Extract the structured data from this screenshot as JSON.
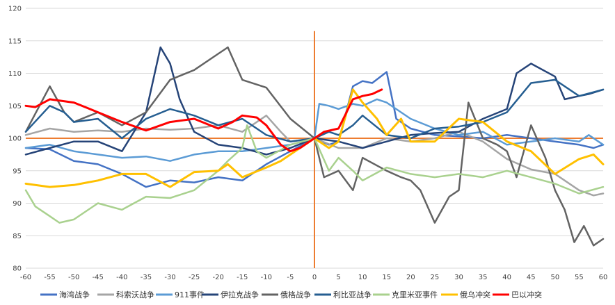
{
  "chart_data": {
    "type": "line",
    "title": "",
    "xlabel": "",
    "ylabel": "",
    "xlim": [
      -60,
      60
    ],
    "ylim": [
      80,
      120
    ],
    "grid": true,
    "legend_position": "bottom",
    "x_ticks": [
      "-60",
      "-55",
      "-50",
      "-45",
      "-40",
      "-35",
      "-30",
      "-25",
      "-20",
      "-15",
      "-10",
      "-5",
      "0",
      "5",
      "10",
      "15",
      "20",
      "25",
      "30",
      "35",
      "40",
      "45",
      "50",
      "55",
      "60"
    ],
    "y_ticks": [
      "80",
      "85",
      "90",
      "95",
      "100",
      "105",
      "110",
      "115",
      "120"
    ],
    "reference_lines": {
      "horizontal_y": 100,
      "vertical_x": 0,
      "color": "#ed7d31"
    },
    "series": [
      {
        "name": "海湾战争",
        "color": "#4472c4",
        "x": [
          -60,
          -55,
          -50,
          -45,
          -40,
          -35,
          -30,
          -25,
          -20,
          -15,
          -10,
          -5,
          0,
          3,
          5,
          8,
          10,
          12,
          15,
          17,
          20,
          25,
          30,
          35,
          40,
          45,
          50,
          55,
          58,
          60
        ],
        "y": [
          98.5,
          98.3,
          96.5,
          96,
          94.5,
          92.5,
          93.5,
          93.2,
          94,
          93.5,
          96,
          98,
          100,
          99,
          99.5,
          108,
          108.8,
          108.5,
          110.2,
          103,
          101.5,
          100.5,
          100.3,
          100,
          100.5,
          100,
          99.5,
          99,
          98.5,
          99
        ]
      },
      {
        "name": "科索沃战争",
        "color": "#a5a5a5",
        "x": [
          -60,
          -55,
          -50,
          -45,
          -40,
          -35,
          -30,
          -25,
          -20,
          -15,
          -10,
          -7,
          -5,
          0,
          5,
          10,
          15,
          20,
          25,
          30,
          35,
          40,
          45,
          50,
          55,
          58,
          60
        ],
        "y": [
          100.5,
          101.5,
          101,
          101.2,
          101,
          101.5,
          101.3,
          101.5,
          102,
          101,
          103.5,
          101,
          99.5,
          100,
          98.5,
          98.5,
          100,
          99.5,
          100,
          101,
          99.5,
          96.8,
          95.2,
          94.5,
          92,
          91.2,
          91.5
        ]
      },
      {
        "name": "911事件",
        "color": "#5b9bd5",
        "x": [
          -60,
          -55,
          -50,
          -45,
          -40,
          -35,
          -30,
          -25,
          -20,
          -15,
          -10,
          -5,
          0,
          1,
          3,
          5,
          8,
          10,
          13,
          15,
          20,
          25,
          30,
          35,
          40,
          45,
          50,
          55,
          57,
          60
        ],
        "y": [
          98.5,
          99,
          98,
          97.5,
          97,
          97.2,
          96.5,
          97.5,
          98,
          98,
          98.5,
          99,
          100,
          105.3,
          105,
          104.5,
          105.3,
          105,
          106,
          105.5,
          103,
          101.5,
          100.5,
          101,
          99,
          99.5,
          100,
          99.5,
          100.5,
          99
        ]
      },
      {
        "name": "伊拉克战争",
        "color": "#264478",
        "x": [
          -60,
          -55,
          -50,
          -45,
          -40,
          -35,
          -32,
          -30,
          -28,
          -25,
          -20,
          -15,
          -10,
          -5,
          0,
          5,
          10,
          15,
          20,
          25,
          30,
          35,
          40,
          42,
          45,
          50,
          52,
          55,
          57,
          60
        ],
        "y": [
          97.5,
          98.5,
          99.5,
          99.5,
          98,
          104,
          114,
          111.5,
          106,
          101,
          99,
          98.5,
          97.5,
          98.5,
          100,
          99.5,
          98.5,
          99.5,
          100.5,
          100.8,
          101,
          103,
          104.5,
          110,
          111.5,
          109.5,
          106,
          106.5,
          106.8,
          107.5
        ]
      },
      {
        "name": "俄格战争",
        "color": "#636363",
        "x": [
          -60,
          -55,
          -52,
          -50,
          -45,
          -40,
          -35,
          -30,
          -25,
          -20,
          -18,
          -15,
          -10,
          -5,
          0,
          2,
          5,
          8,
          10,
          15,
          18,
          20,
          22,
          25,
          28,
          30,
          32,
          35,
          38,
          40,
          42,
          45,
          48,
          50,
          52,
          54,
          56,
          58,
          60
        ],
        "y": [
          101,
          108,
          104,
          102.5,
          104,
          102,
          104,
          109,
          110.5,
          113,
          114,
          109,
          107.8,
          103,
          100,
          94,
          95,
          92,
          97,
          95,
          94,
          93.5,
          92,
          87,
          91,
          92,
          105.5,
          100,
          99,
          98,
          94,
          102,
          97,
          92,
          89,
          84,
          86.5,
          83.5,
          84.5
        ]
      },
      {
        "name": "利比亚战争",
        "color": "#255e91",
        "x": [
          -60,
          -55,
          -52,
          -50,
          -45,
          -40,
          -35,
          -30,
          -25,
          -20,
          -15,
          -10,
          -5,
          0,
          3,
          5,
          8,
          10,
          15,
          20,
          25,
          30,
          35,
          40,
          45,
          50,
          55,
          60
        ],
        "y": [
          101,
          105,
          104,
          102.5,
          103,
          100,
          103,
          104.5,
          103.5,
          102,
          103,
          100.5,
          99.5,
          100,
          101,
          100.5,
          102,
          103.5,
          100.5,
          100,
          101.5,
          101.8,
          102.5,
          104,
          108.5,
          109,
          106.5,
          107.5
        ]
      },
      {
        "name": "克里米亚事件",
        "color": "#a9d18e",
        "x": [
          -60,
          -58,
          -55,
          -53,
          -50,
          -47,
          -45,
          -40,
          -35,
          -30,
          -25,
          -20,
          -18,
          -15,
          -14,
          -12,
          -10,
          -5,
          0,
          3,
          5,
          8,
          10,
          15,
          20,
          25,
          30,
          35,
          40,
          45,
          50,
          55,
          60
        ],
        "y": [
          92,
          89.5,
          88,
          87,
          87.5,
          89,
          90,
          89,
          91,
          90.8,
          92,
          95,
          96.5,
          98.5,
          102,
          98,
          97,
          99,
          100,
          95,
          97,
          95,
          93.5,
          95.5,
          94.5,
          94,
          94.5,
          94,
          95,
          94,
          93,
          91.5,
          92.5
        ]
      },
      {
        "name": "俄乌冲突",
        "color": "#ffc000",
        "x": [
          -60,
          -55,
          -50,
          -45,
          -40,
          -35,
          -30,
          -25,
          -20,
          -18,
          -15,
          -10,
          -7,
          -5,
          0,
          3,
          5,
          8,
          10,
          13,
          15,
          18,
          20,
          25,
          30,
          35,
          40,
          45,
          50,
          55,
          58,
          60
        ],
        "y": [
          93,
          92.5,
          92.8,
          93.5,
          94.5,
          94.5,
          92.5,
          94.8,
          95,
          96,
          94,
          95.5,
          96.5,
          97.5,
          100,
          98.5,
          99.5,
          107.5,
          105.5,
          103,
          100.5,
          103,
          99.5,
          99.5,
          103,
          102.5,
          99.5,
          98,
          94.5,
          96.8,
          97.5,
          96
        ]
      },
      {
        "name": "巴以冲突",
        "color": "#ff0000",
        "x": [
          -60,
          -58,
          -55,
          -50,
          -45,
          -40,
          -35,
          -30,
          -25,
          -20,
          -17,
          -15,
          -12,
          -10,
          -7,
          -5,
          -3,
          0,
          2,
          5,
          8,
          10,
          12,
          14
        ],
        "y": [
          105,
          104.8,
          106,
          105.5,
          104,
          102.5,
          101.2,
          102.5,
          103,
          101.5,
          102.5,
          103.5,
          103.2,
          102,
          99,
          98,
          98.5,
          100,
          101,
          101.5,
          106,
          106.5,
          106.8,
          107.5
        ]
      }
    ]
  }
}
